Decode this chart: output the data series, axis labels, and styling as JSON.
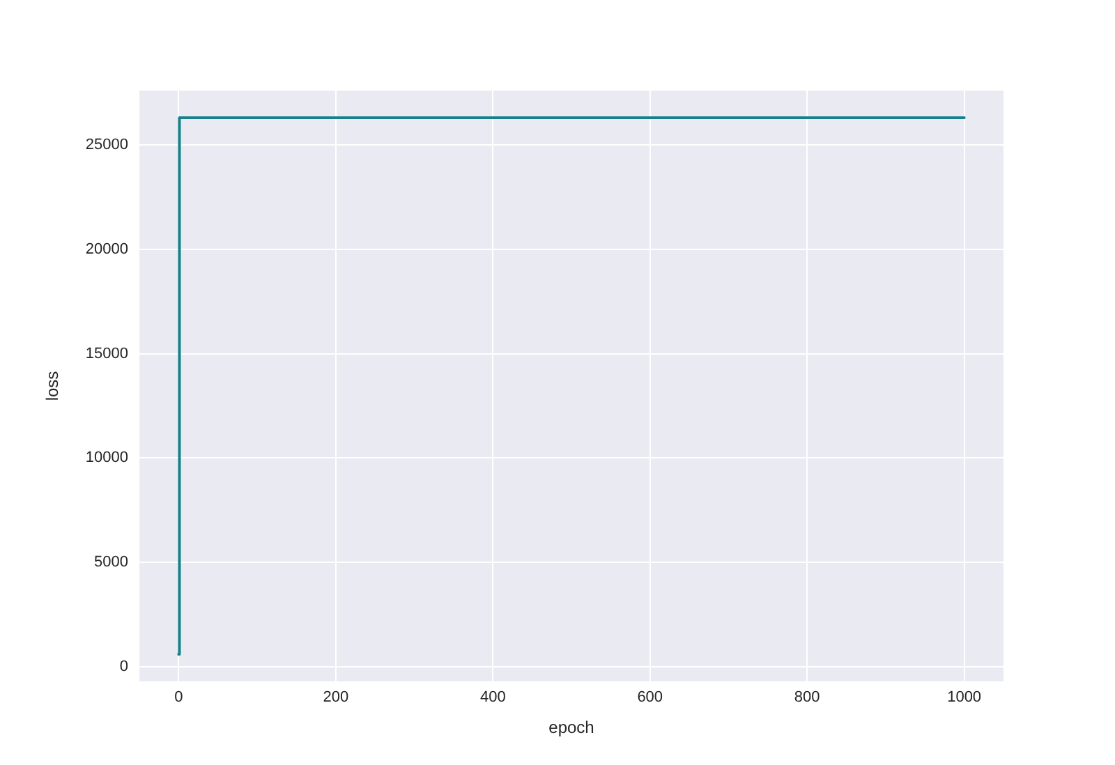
{
  "chart_data": {
    "type": "line",
    "xlabel": "epoch",
    "ylabel": "loss",
    "x": [
      0,
      1,
      1000
    ],
    "series": [
      {
        "color": "#17808a",
        "values": [
          600,
          26300,
          26300
        ]
      }
    ],
    "xlim": [
      -50,
      1050
    ],
    "ylim": [
      -700,
      27600
    ],
    "xticks": [
      0,
      200,
      400,
      600,
      800,
      1000
    ],
    "yticks": [
      0,
      5000,
      10000,
      15000,
      20000,
      25000
    ],
    "grid": true
  }
}
